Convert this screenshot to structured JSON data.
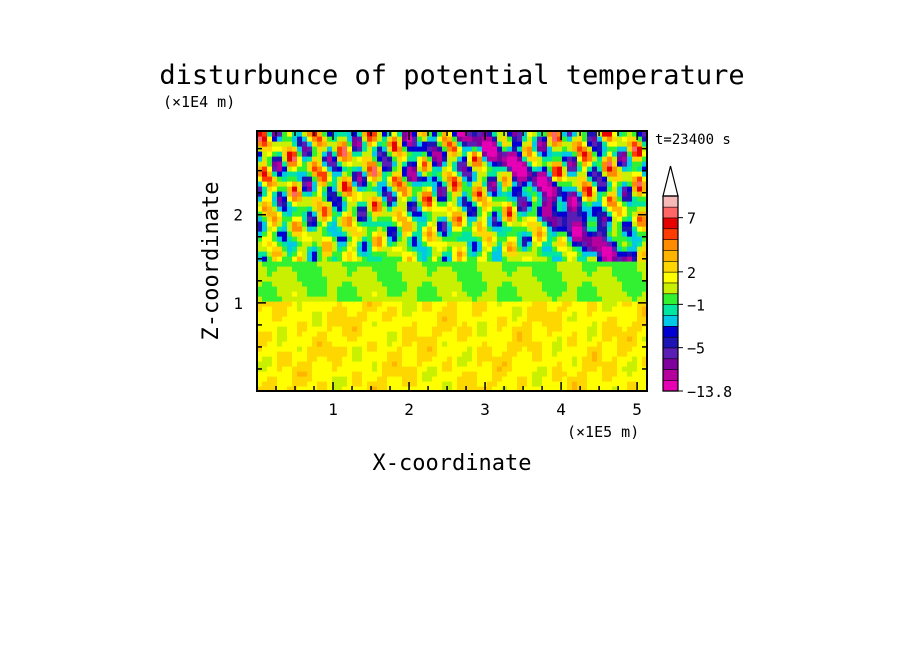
{
  "chart_data": {
    "type": "heatmap",
    "title": "disturbunce of potential temperature",
    "time_label": "t=23400 s",
    "xlabel": "X-coordinate",
    "ylabel": "Z-coordinate",
    "x_unit": "(×1E5 m)",
    "y_unit": "(×1E4 m)",
    "xlim": [
      0,
      5.13
    ],
    "ylim": [
      0,
      2.95
    ],
    "x_ticks": [
      1,
      2,
      3,
      4,
      5
    ],
    "y_ticks": [
      1,
      2
    ],
    "colorbar": {
      "extend_max": true,
      "tick_labels": [
        {
          "value": 7,
          "label": "7"
        },
        {
          "value": 2,
          "label": "2"
        },
        {
          "value": -1,
          "label": "−1"
        },
        {
          "value": -5,
          "label": "−5"
        },
        {
          "value": -13.8,
          "label": "−13.8"
        }
      ],
      "levels": [
        -13.8,
        -9,
        -7,
        -6,
        -5,
        -4,
        -3,
        -2,
        -1,
        0,
        1,
        2,
        3,
        4,
        5,
        6,
        7,
        9,
        11
      ],
      "colors": [
        "#e600b4",
        "#b4009c",
        "#7f009c",
        "#5a1eb4",
        "#1e14b4",
        "#0000d2",
        "#00c8e6",
        "#00e6a0",
        "#32f032",
        "#c8f000",
        "#ffff00",
        "#ffd700",
        "#ffb400",
        "#ff8c00",
        "#ff3c00",
        "#e60000",
        "#ff6666",
        "#f7b8b8"
      ],
      "top_triangle_color": "#ffffff"
    },
    "field_summary": [
      {
        "z_range": [
          0,
          1.0
        ],
        "typical_value": 1.5,
        "description": "yellow/orange layer"
      },
      {
        "z_range": [
          1.0,
          1.45
        ],
        "typical_value": -0.3,
        "description": "green/cyan band"
      },
      {
        "z_range": [
          1.45,
          2.95
        ],
        "typical_value": "alternating -8 to 7",
        "description": "wave pattern with blue/purple minima and orange/red maxima"
      }
    ]
  }
}
